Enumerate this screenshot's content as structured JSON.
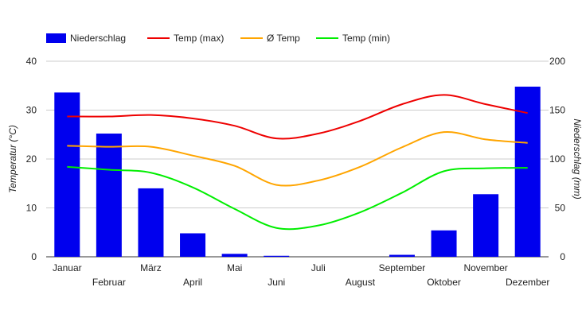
{
  "chart_data": {
    "type": "bar",
    "categories": [
      "Januar",
      "Februar",
      "März",
      "April",
      "Mai",
      "Juni",
      "Juli",
      "August",
      "September",
      "Oktober",
      "November",
      "Dezember"
    ],
    "series": [
      {
        "name": "Niederschlag",
        "kind": "bar",
        "axis": "right",
        "color": "#0000ee",
        "values": [
          168,
          126,
          70,
          24,
          3,
          1,
          0,
          0,
          2,
          27,
          64,
          174
        ]
      },
      {
        "name": "Temp (max)",
        "kind": "line",
        "axis": "left",
        "color": "#ee0000",
        "values": [
          28.7,
          28.7,
          29.0,
          28.3,
          26.8,
          24.2,
          25.2,
          27.8,
          31.2,
          33.1,
          31.2,
          29.4
        ]
      },
      {
        "name": "Ø Temp",
        "kind": "line",
        "axis": "left",
        "color": "#ffa500",
        "values": [
          22.7,
          22.5,
          22.5,
          20.7,
          18.6,
          14.7,
          15.6,
          18.4,
          22.4,
          25.5,
          24.0,
          23.3
        ]
      },
      {
        "name": "Temp (min)",
        "kind": "line",
        "axis": "left",
        "color": "#00ee00",
        "values": [
          18.4,
          17.8,
          17.2,
          14.2,
          9.8,
          5.9,
          6.4,
          9.1,
          13.1,
          17.5,
          18.1,
          18.2
        ]
      }
    ],
    "y_left": {
      "label": "Temperatur (°C)",
      "ylim": [
        0,
        40
      ],
      "ticks": [
        "0",
        "10",
        "20",
        "30",
        "40"
      ]
    },
    "y_right": {
      "label": "Niederschlag (mm)",
      "ylim": [
        0,
        200
      ],
      "ticks": [
        "0",
        "50",
        "100",
        "150",
        "200"
      ]
    },
    "grid": true,
    "legend_position": "top-left"
  }
}
